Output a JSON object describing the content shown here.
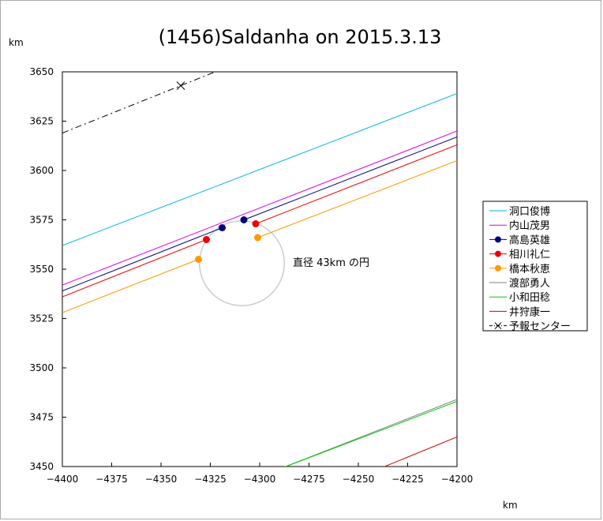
{
  "chart_data": {
    "type": "line",
    "title": "(1456)Saldanha on 2015.3.13",
    "xlabel": "km",
    "ylabel": "km",
    "xlim": [
      -4400,
      -4200
    ],
    "ylim": [
      3450,
      3650
    ],
    "xticks": [
      -4400,
      -4375,
      -4350,
      -4325,
      -4300,
      -4275,
      -4250,
      -4225,
      -4200
    ],
    "yticks": [
      3450,
      3475,
      3500,
      3525,
      3550,
      3575,
      3600,
      3625,
      3650
    ],
    "grid": false,
    "legend_position": "right",
    "annotation": "直径 43km の円",
    "circle": {
      "center": [
        -4309,
        3553
      ],
      "diameter": 43,
      "color": "#cccccc"
    },
    "series": [
      {
        "name": "洞口俊博",
        "color": "#00b4e6",
        "style": "line",
        "line": [
          [
            -4400,
            3562
          ],
          [
            -4200,
            3639
          ]
        ]
      },
      {
        "name": "内山茂男",
        "color": "#dd00dd",
        "style": "line",
        "line": [
          [
            -4400,
            3542
          ],
          [
            -4200,
            3620
          ]
        ]
      },
      {
        "name": "高島英雄",
        "color": "#000080",
        "style": "line-dot",
        "segments": [
          [
            [
              -4400,
              3539
            ],
            [
              -4319,
              3571
            ]
          ],
          [
            [
              -4308,
              3575
            ],
            [
              -4200,
              3617
            ]
          ]
        ],
        "points": [
          [
            -4319,
            3571
          ],
          [
            -4308,
            3575
          ]
        ]
      },
      {
        "name": "相川礼仁",
        "color": "#ee0000",
        "style": "line-dot",
        "segments": [
          [
            [
              -4400,
              3536
            ],
            [
              -4327,
              3565
            ]
          ],
          [
            [
              -4302,
              3573
            ],
            [
              -4200,
              3613
            ]
          ]
        ],
        "points": [
          [
            -4327,
            3565
          ],
          [
            -4302,
            3573
          ]
        ]
      },
      {
        "name": "橋本秋恵",
        "color": "#ff9900",
        "style": "line-dot",
        "segments": [
          [
            [
              -4400,
              3528
            ],
            [
              -4331,
              3555
            ]
          ],
          [
            [
              -4301,
              3566
            ],
            [
              -4200,
              3605
            ]
          ]
        ],
        "points": [
          [
            -4331,
            3555
          ],
          [
            -4301,
            3566
          ]
        ]
      },
      {
        "name": "渡部勇人",
        "color": "#808080",
        "style": "line",
        "line": [
          [
            -4292,
            3448
          ],
          [
            -4200,
            3484
          ]
        ]
      },
      {
        "name": "小和田稔",
        "color": "#00cc00",
        "style": "line",
        "line": [
          [
            -4292,
            3448
          ],
          [
            -4200,
            3483
          ]
        ]
      },
      {
        "name": "井狩康一",
        "color": "#cc0000",
        "style": "line",
        "line": [
          [
            -4244,
            3447
          ],
          [
            -4200,
            3465
          ]
        ]
      },
      {
        "name": "予報センター",
        "color": "#000000",
        "style": "dashdot-cross",
        "line": [
          [
            -4400,
            3619
          ],
          [
            -4315,
            3653
          ]
        ],
        "points": [
          [
            -4340,
            3643
          ]
        ]
      }
    ]
  }
}
